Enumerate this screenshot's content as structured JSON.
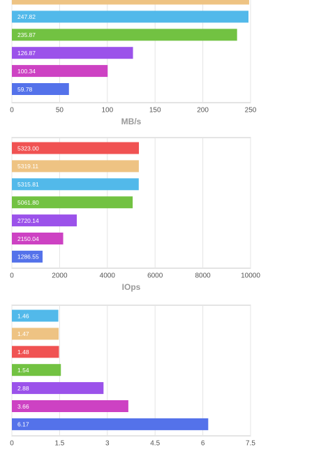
{
  "chart_data": [
    {
      "type": "bar",
      "orientation": "horizontal",
      "xlabel": "MB/s",
      "values": [
        248.5,
        247.82,
        235.87,
        126.87,
        100.34,
        59.78
      ],
      "value_labels": [
        null,
        "247.82",
        "235.87",
        "126.87",
        "100.34",
        "59.78"
      ],
      "colors": [
        "#eec383",
        "#52b9ea",
        "#72c242",
        "#9b52ea",
        "#cd42c3",
        "#5472ea"
      ],
      "xlim": [
        0,
        250
      ],
      "xticks": [
        0,
        50,
        100,
        150,
        200,
        250
      ],
      "grid": true
    },
    {
      "type": "bar",
      "orientation": "horizontal",
      "xlabel": "IOps",
      "values": [
        5323,
        5319.11,
        5315.81,
        5061.8,
        2720.14,
        2150.04,
        1286.55
      ],
      "value_labels": [
        "5323.00",
        "5319.11",
        "5315.81",
        "5061.80",
        "2720.14",
        "2150.04",
        "1286.55"
      ],
      "colors": [
        "#f05252",
        "#eec383",
        "#52b9ea",
        "#72c242",
        "#9b52ea",
        "#cd42c3",
        "#5472ea"
      ],
      "xlim": [
        0,
        10000
      ],
      "xticks": [
        0,
        2000,
        4000,
        6000,
        8000,
        10000
      ],
      "grid": true
    },
    {
      "type": "bar",
      "orientation": "horizontal",
      "values": [
        1.46,
        1.47,
        1.48,
        1.54,
        2.88,
        3.66,
        6.17
      ],
      "colors": [
        "#52b9ea",
        "#eec383",
        "#f05252",
        "#72c242",
        "#9b52ea",
        "#cd42c3",
        "#5472ea"
      ],
      "xlim": [
        0,
        7.5
      ],
      "xticks": [
        0,
        1.5,
        3,
        4.5,
        6,
        7.5
      ],
      "grid": true
    }
  ]
}
